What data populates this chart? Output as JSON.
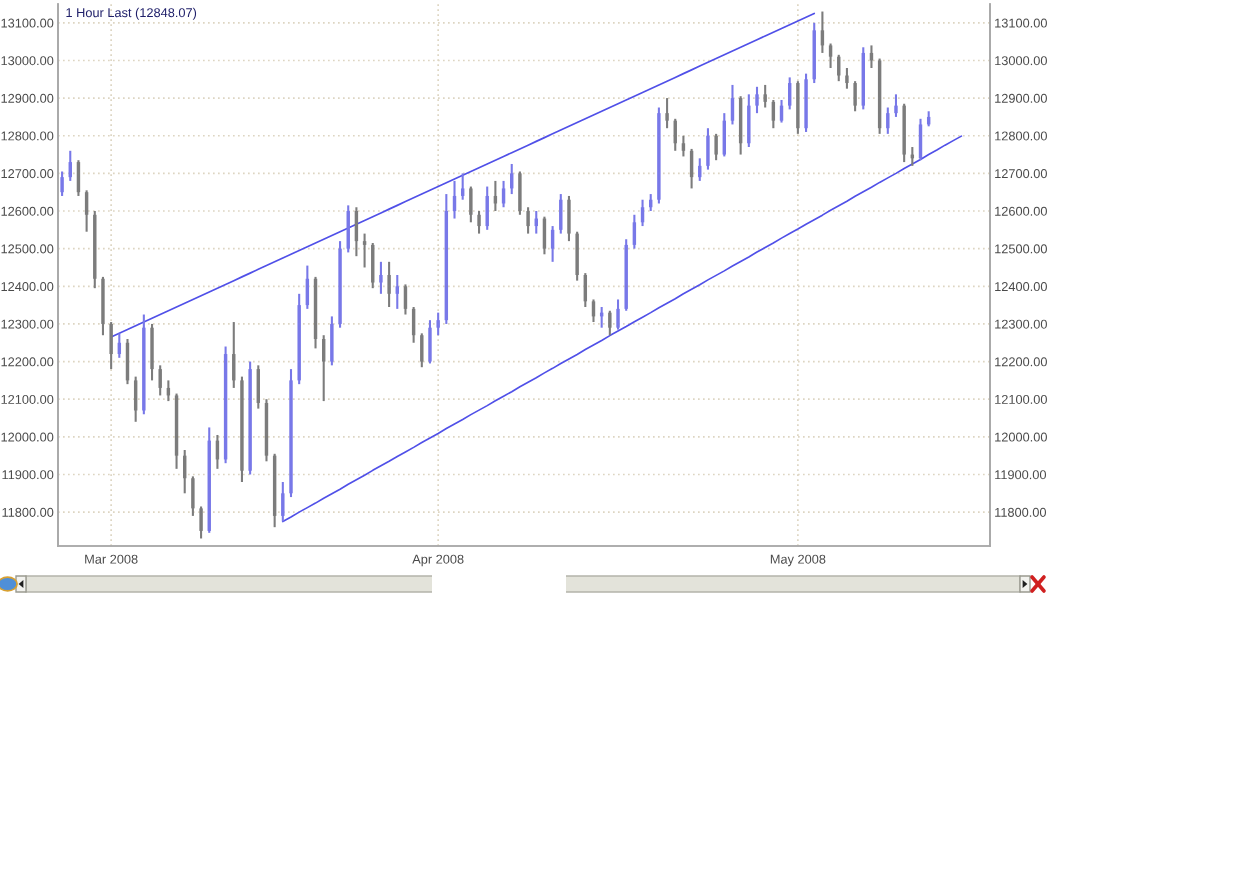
{
  "chart_data": {
    "type": "candlestick",
    "title": "1 Hour Last (12848.07)",
    "categories": [
      null,
      null,
      null,
      null,
      null,
      null,
      "Mar 2008",
      null,
      null,
      null,
      null,
      null,
      null,
      null,
      null,
      null,
      null,
      null,
      null,
      null,
      null,
      null,
      null,
      null,
      null,
      null,
      null,
      null,
      null,
      null,
      null,
      null,
      null,
      null,
      null,
      null,
      null,
      null,
      null,
      null,
      null,
      null,
      null,
      null,
      null,
      null,
      "Apr 2008",
      null,
      null,
      null,
      null,
      null,
      null,
      null,
      null,
      null,
      null,
      null,
      null,
      null,
      null,
      null,
      null,
      null,
      null,
      null,
      null,
      null,
      null,
      null,
      null,
      null,
      null,
      null,
      null,
      null,
      null,
      null,
      null,
      null,
      null,
      null,
      null,
      null,
      null,
      null,
      null,
      null,
      null,
      null,
      "May 2008",
      null,
      null,
      null,
      null,
      null,
      null,
      null,
      null,
      null,
      null,
      null,
      null,
      null,
      null,
      null,
      null,
      null,
      null,
      null,
      null,
      null,
      null,
      null
    ],
    "ylim": [
      11710,
      13150
    ],
    "yticks": [
      {
        "value": 11800,
        "label": "11800.00"
      },
      {
        "value": 11900,
        "label": "11900.00"
      },
      {
        "value": 12000,
        "label": "12000.00"
      },
      {
        "value": 12100,
        "label": "12100.00"
      },
      {
        "value": 12200,
        "label": "12200.00"
      },
      {
        "value": 12300,
        "label": "12300.00"
      },
      {
        "value": 12400,
        "label": "12400.00"
      },
      {
        "value": 12500,
        "label": "12500.00"
      },
      {
        "value": 12600,
        "label": "12600.00"
      },
      {
        "value": 12700,
        "label": "12700.00"
      },
      {
        "value": 12800,
        "label": "12800.00"
      },
      {
        "value": 12900,
        "label": "12900.00"
      },
      {
        "value": 13000,
        "label": "13000.00"
      },
      {
        "value": 13100,
        "label": "13100.00"
      }
    ],
    "y2lim": [
      11710,
      13150
    ],
    "y2ticks": [
      {
        "value": 11800,
        "label": "11800.00"
      },
      {
        "value": 11900,
        "label": "11900.00"
      },
      {
        "value": 12000,
        "label": "12000.00"
      },
      {
        "value": 12100,
        "label": "12100.00"
      },
      {
        "value": 12200,
        "label": "12200.00"
      },
      {
        "value": 12300,
        "label": "12300.00"
      },
      {
        "value": 12400,
        "label": "12400.00"
      },
      {
        "value": 12500,
        "label": "12500.00"
      },
      {
        "value": 12600,
        "label": "12600.00"
      },
      {
        "value": 12700,
        "label": "12700.00"
      },
      {
        "value": 12800,
        "label": "12800.00"
      },
      {
        "value": 12900,
        "label": "12900.00"
      },
      {
        "value": 13000,
        "label": "13000.00"
      },
      {
        "value": 13100,
        "label": "13100.00"
      }
    ],
    "grid": true,
    "series": [
      {
        "ohlc": [
          [
            12650,
            12705,
            12640,
            12690
          ],
          [
            12690,
            12760,
            12680,
            12730
          ],
          [
            12730,
            12735,
            12640,
            12650
          ],
          [
            12650,
            12655,
            12545,
            12590
          ],
          [
            12590,
            12600,
            12395,
            12420
          ],
          [
            12420,
            12425,
            12270,
            12300
          ],
          [
            12300,
            12305,
            12180,
            12220
          ],
          [
            12220,
            12275,
            12210,
            12250
          ],
          [
            12250,
            12260,
            12140,
            12150
          ],
          [
            12150,
            12160,
            12040,
            12070
          ],
          [
            12070,
            12325,
            12060,
            12290
          ],
          [
            12290,
            12300,
            12150,
            12180
          ],
          [
            12180,
            12190,
            12110,
            12130
          ],
          [
            12130,
            12150,
            12095,
            12110
          ],
          [
            12110,
            12115,
            11915,
            11950
          ],
          [
            11950,
            11965,
            11850,
            11890
          ],
          [
            11890,
            11895,
            11790,
            11810
          ],
          [
            11810,
            11815,
            11730,
            11750
          ],
          [
            11750,
            12025,
            11745,
            11990
          ],
          [
            11990,
            12005,
            11915,
            11940
          ],
          [
            11940,
            12240,
            11930,
            12220
          ],
          [
            12220,
            12305,
            12130,
            12150
          ],
          [
            12150,
            12160,
            11880,
            11910
          ],
          [
            11910,
            12200,
            11900,
            12180
          ],
          [
            12180,
            12190,
            12075,
            12090
          ],
          [
            12090,
            12100,
            11935,
            11950
          ],
          [
            11950,
            11955,
            11760,
            11790
          ],
          [
            11790,
            11880,
            11775,
            11850
          ],
          [
            11850,
            12180,
            11840,
            12150
          ],
          [
            12150,
            12380,
            12140,
            12350
          ],
          [
            12350,
            12455,
            12340,
            12420
          ],
          [
            12420,
            12425,
            12235,
            12260
          ],
          [
            12260,
            12270,
            12095,
            12200
          ],
          [
            12200,
            12320,
            12190,
            12300
          ],
          [
            12300,
            12520,
            12290,
            12500
          ],
          [
            12500,
            12615,
            12490,
            12600
          ],
          [
            12600,
            12610,
            12480,
            12520
          ],
          [
            12520,
            12540,
            12450,
            12510
          ],
          [
            12510,
            12515,
            12395,
            12410
          ],
          [
            12410,
            12465,
            12380,
            12430
          ],
          [
            12430,
            12465,
            12345,
            12380
          ],
          [
            12380,
            12430,
            12340,
            12400
          ],
          [
            12400,
            12405,
            12325,
            12340
          ],
          [
            12340,
            12345,
            12250,
            12270
          ],
          [
            12270,
            12275,
            12185,
            12200
          ],
          [
            12200,
            12310,
            12195,
            12290
          ],
          [
            12290,
            12330,
            12270,
            12310
          ],
          [
            12310,
            12645,
            12300,
            12600
          ],
          [
            12600,
            12680,
            12580,
            12640
          ],
          [
            12640,
            12700,
            12630,
            12660
          ],
          [
            12660,
            12665,
            12570,
            12590
          ],
          [
            12590,
            12600,
            12540,
            12560
          ],
          [
            12560,
            12665,
            12550,
            12640
          ],
          [
            12640,
            12680,
            12600,
            12620
          ],
          [
            12620,
            12680,
            12610,
            12660
          ],
          [
            12660,
            12725,
            12645,
            12700
          ],
          [
            12700,
            12705,
            12590,
            12600
          ],
          [
            12600,
            12610,
            12540,
            12560
          ],
          [
            12560,
            12600,
            12540,
            12580
          ],
          [
            12580,
            12585,
            12485,
            12500
          ],
          [
            12500,
            12560,
            12465,
            12550
          ],
          [
            12550,
            12645,
            12540,
            12630
          ],
          [
            12630,
            12640,
            12520,
            12540
          ],
          [
            12540,
            12545,
            12415,
            12430
          ],
          [
            12430,
            12435,
            12345,
            12360
          ],
          [
            12360,
            12365,
            12305,
            12320
          ],
          [
            12320,
            12345,
            12290,
            12330
          ],
          [
            12330,
            12335,
            12270,
            12290
          ],
          [
            12290,
            12365,
            12285,
            12340
          ],
          [
            12340,
            12525,
            12335,
            12510
          ],
          [
            12510,
            12590,
            12500,
            12570
          ],
          [
            12570,
            12630,
            12560,
            12610
          ],
          [
            12610,
            12645,
            12600,
            12630
          ],
          [
            12630,
            12875,
            12620,
            12860
          ],
          [
            12860,
            12900,
            12820,
            12840
          ],
          [
            12840,
            12845,
            12760,
            12780
          ],
          [
            12780,
            12800,
            12745,
            12760
          ],
          [
            12760,
            12765,
            12660,
            12690
          ],
          [
            12690,
            12740,
            12680,
            12720
          ],
          [
            12720,
            12820,
            12710,
            12800
          ],
          [
            12800,
            12805,
            12735,
            12750
          ],
          [
            12750,
            12860,
            12745,
            12840
          ],
          [
            12840,
            12935,
            12830,
            12900
          ],
          [
            12900,
            12905,
            12750,
            12780
          ],
          [
            12780,
            12910,
            12770,
            12880
          ],
          [
            12880,
            12930,
            12860,
            12910
          ],
          [
            12910,
            12935,
            12875,
            12890
          ],
          [
            12890,
            12895,
            12820,
            12840
          ],
          [
            12840,
            12895,
            12835,
            12880
          ],
          [
            12880,
            12955,
            12870,
            12940
          ],
          [
            12940,
            12945,
            12805,
            12820
          ],
          [
            12820,
            12965,
            12810,
            12950
          ],
          [
            12950,
            13100,
            12940,
            13080
          ],
          [
            13080,
            13130,
            13020,
            13040
          ],
          [
            13040,
            13045,
            12980,
            13010
          ],
          [
            13010,
            13015,
            12945,
            12960
          ],
          [
            12960,
            12980,
            12925,
            12940
          ],
          [
            12940,
            12945,
            12865,
            12880
          ],
          [
            12880,
            13035,
            12870,
            13020
          ],
          [
            13020,
            13040,
            12980,
            13000
          ],
          [
            13000,
            13005,
            12805,
            12820
          ],
          [
            12820,
            12875,
            12805,
            12860
          ],
          [
            12860,
            12910,
            12850,
            12880
          ],
          [
            12880,
            12885,
            12730,
            12750
          ],
          [
            12750,
            12770,
            12720,
            12740
          ],
          [
            12740,
            12845,
            12735,
            12830
          ],
          [
            12830,
            12865,
            12825,
            12850
          ],
          null,
          null,
          null,
          null,
          null,
          null,
          null
        ],
        "colors": [
          "#7878e8",
          "#7878e8",
          "#7c7c7c",
          "#7c7c7c",
          "#7c7c7c",
          "#7c7c7c",
          "#7c7c7c",
          "#7878e8",
          "#7c7c7c",
          "#7c7c7c",
          "#7878e8",
          "#7c7c7c",
          "#7c7c7c",
          "#7c7c7c",
          "#7c7c7c",
          "#7c7c7c",
          "#7c7c7c",
          "#7c7c7c",
          "#7878e8",
          "#7c7c7c",
          "#7878e8",
          "#7c7c7c",
          "#7c7c7c",
          "#7878e8",
          "#7c7c7c",
          "#7c7c7c",
          "#7c7c7c",
          "#7878e8",
          "#7878e8",
          "#7878e8",
          "#7878e8",
          "#7c7c7c",
          "#7c7c7c",
          "#7878e8",
          "#7878e8",
          "#7878e8",
          "#7c7c7c",
          "#7c7c7c",
          "#7c7c7c",
          "#7878e8",
          "#7c7c7c",
          "#7878e8",
          "#7c7c7c",
          "#7c7c7c",
          "#7c7c7c",
          "#7878e8",
          "#7878e8",
          "#7878e8",
          "#7878e8",
          "#7878e8",
          "#7c7c7c",
          "#7c7c7c",
          "#7878e8",
          "#7c7c7c",
          "#7878e8",
          "#7878e8",
          "#7c7c7c",
          "#7c7c7c",
          "#7878e8",
          "#7c7c7c",
          "#7878e8",
          "#7878e8",
          "#7c7c7c",
          "#7c7c7c",
          "#7c7c7c",
          "#7c7c7c",
          "#7878e8",
          "#7c7c7c",
          "#7878e8",
          "#7878e8",
          "#7878e8",
          "#7878e8",
          "#7878e8",
          "#7878e8",
          "#7c7c7c",
          "#7c7c7c",
          "#7c7c7c",
          "#7c7c7c",
          "#7878e8",
          "#7878e8",
          "#7c7c7c",
          "#7878e8",
          "#7878e8",
          "#7c7c7c",
          "#7878e8",
          "#7878e8",
          "#7c7c7c",
          "#7c7c7c",
          "#7878e8",
          "#7878e8",
          "#7c7c7c",
          "#7878e8",
          "#7878e8",
          "#7c7c7c",
          "#7c7c7c",
          "#7c7c7c",
          "#7c7c7c",
          "#7c7c7c",
          "#7878e8",
          "#7c7c7c",
          "#7c7c7c",
          "#7878e8",
          "#7878e8",
          "#7c7c7c",
          "#7c7c7c",
          "#7878e8",
          "#7878e8",
          null,
          null,
          null,
          null,
          null,
          null,
          null
        ]
      },
      {
        "type": "line",
        "color": "#5050e8",
        "values": [
          null,
          null,
          null,
          null,
          null,
          null,
          12265,
          12275,
          12285,
          12295,
          12305,
          12315,
          12325,
          12335,
          12345,
          12355,
          12365,
          12375,
          12385,
          12395,
          12405,
          12415,
          12425,
          12435,
          12445,
          12455,
          12465,
          12475,
          12485,
          12495,
          12505,
          12515,
          12525,
          12535,
          12545,
          12555,
          12565,
          12575,
          12585,
          12595,
          12605,
          12615,
          12625,
          12635,
          12645,
          12655,
          12665,
          12675,
          12685,
          12695,
          12705,
          12715,
          12725,
          12735,
          12745,
          12755,
          12765,
          12775,
          12785,
          12795,
          12805,
          12815,
          12825,
          12835,
          12845,
          12855,
          12865,
          12875,
          12885,
          12895,
          12905,
          12915,
          12925,
          12935,
          12945,
          12955,
          12965,
          12975,
          12985,
          12995,
          13005,
          13015,
          13025,
          13035,
          13045,
          13055,
          13065,
          13075,
          13085,
          13095,
          13105,
          13115,
          13125,
          null,
          null,
          null,
          null,
          null,
          null,
          null,
          null,
          null,
          null,
          null,
          null,
          null,
          null,
          null,
          null,
          null,
          null,
          null,
          null,
          null
        ]
      },
      {
        "type": "line",
        "color": "#5050e8",
        "values": [
          null,
          null,
          null,
          null,
          null,
          null,
          null,
          null,
          null,
          null,
          null,
          null,
          null,
          null,
          null,
          null,
          null,
          null,
          null,
          null,
          null,
          null,
          null,
          null,
          null,
          null,
          null,
          11775,
          11787,
          11800,
          11812,
          11824,
          11837,
          11849,
          11861,
          11874,
          11886,
          11898,
          11911,
          11923,
          11935,
          11948,
          11960,
          11972,
          11985,
          11997,
          12009,
          12022,
          12034,
          12046,
          12059,
          12071,
          12083,
          12096,
          12108,
          12120,
          12133,
          12145,
          12157,
          12170,
          12182,
          12195,
          12207,
          12219,
          12232,
          12244,
          12256,
          12269,
          12281,
          12293,
          12306,
          12318,
          12330,
          12343,
          12355,
          12367,
          12380,
          12392,
          12404,
          12417,
          12429,
          12441,
          12454,
          12466,
          12478,
          12491,
          12503,
          12515,
          12528,
          12540,
          12552,
          12565,
          12577,
          12589,
          12602,
          12614,
          12626,
          12639,
          12651,
          12663,
          12676,
          12688,
          12700,
          12713,
          12725,
          12737,
          12750,
          12762,
          12775,
          12787,
          12799,
          null,
          null,
          null
        ]
      }
    ]
  }
}
